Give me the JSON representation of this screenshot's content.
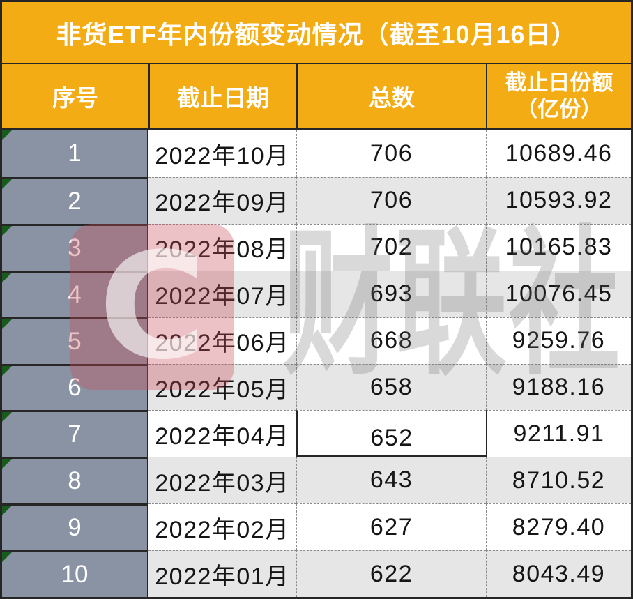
{
  "chart_data": {
    "type": "table",
    "title": "非货ETF年内份额变动情况（截至10月16日）",
    "columns": [
      "序号",
      "截止日期",
      "总数",
      "截止日份额（亿份）"
    ],
    "header_display": {
      "col1": "序号",
      "col2": "截止日期",
      "col3": "总数",
      "col4_line1": "截止日份额",
      "col4_line2": "（亿份）"
    },
    "rows": [
      {
        "no": "1",
        "date": "2022年10月",
        "total": "706",
        "shares": "10689.46"
      },
      {
        "no": "2",
        "date": "2022年09月",
        "total": "706",
        "shares": "10593.92"
      },
      {
        "no": "3",
        "date": "2022年08月",
        "total": "702",
        "shares": "10165.83"
      },
      {
        "no": "4",
        "date": "2022年07月",
        "total": "693",
        "shares": "10076.45"
      },
      {
        "no": "5",
        "date": "2022年06月",
        "total": "668",
        "shares": "9259.76"
      },
      {
        "no": "6",
        "date": "2022年05月",
        "total": "658",
        "shares": "9188.16"
      },
      {
        "no": "7",
        "date": "2022年04月",
        "total": "652",
        "shares": "9211.91"
      },
      {
        "no": "8",
        "date": "2022年03月",
        "total": "643",
        "shares": "8710.52"
      },
      {
        "no": "9",
        "date": "2022年02月",
        "total": "627",
        "shares": "8279.40"
      },
      {
        "no": "10",
        "date": "2022年01月",
        "total": "622",
        "shares": "8043.49"
      }
    ]
  },
  "watermark": {
    "logo_letter": "C",
    "text": "财联社"
  },
  "colors": {
    "accent_orange": "#F4AC15",
    "index_column_gray": "#8A93A3",
    "alt_row_gray": "#E6E6E6",
    "border_dark": "#262626",
    "dashed_grid": "#8A8A8A",
    "corner_mark_green": "#175C1B",
    "watermark_pink": "#C74D58",
    "watermark_gray": "#6E6E6E",
    "header_text": "#FFFFFF",
    "body_text": "#151515"
  }
}
